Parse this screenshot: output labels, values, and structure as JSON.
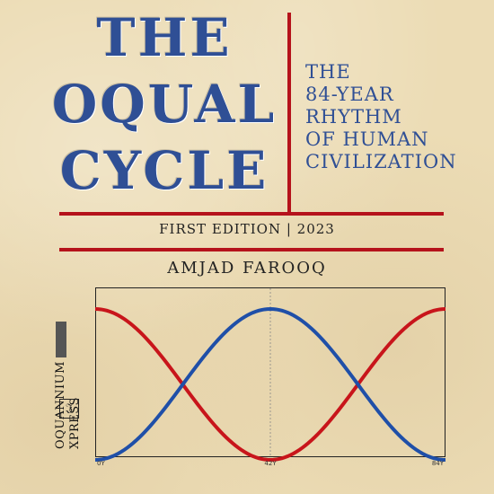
{
  "cover": {
    "title_lines": [
      "THE",
      "OQUAL",
      "CYCLE"
    ],
    "subtitle_lines": [
      "THE",
      "84-YEAR",
      "RHYTHM",
      "OF HUMAN",
      "CIVILIZATION"
    ],
    "edition": "FIRST EDITION | 2023",
    "author": "AMJAD FAROOQ",
    "publisher": {
      "line1": "OQUANNIUM",
      "line2": "XPRESS",
      "logo_icon": "script-x-logo-icon"
    },
    "colors": {
      "title_blue": "#2f4f95",
      "rule_red": "#b5121b",
      "paper": "#ecdcb5"
    }
  },
  "chart_data": {
    "type": "line",
    "title": "",
    "xlabel": "",
    "ylabel": "",
    "x_ticks": [
      "0Y",
      "42Y",
      "84Y"
    ],
    "x_range": [
      0,
      84
    ],
    "y_range": [
      -1,
      1
    ],
    "grid": false,
    "vertical_reference_line_at": 42,
    "series": [
      {
        "color": "#c8151b",
        "x": [
          0,
          42,
          84
        ],
        "y": [
          1,
          -1,
          1
        ],
        "shape": "cosine"
      },
      {
        "color": "#1f4fa8",
        "x": [
          0,
          42,
          84
        ],
        "y": [
          -1,
          1,
          -1
        ],
        "shape": "negative-cosine"
      }
    ]
  }
}
